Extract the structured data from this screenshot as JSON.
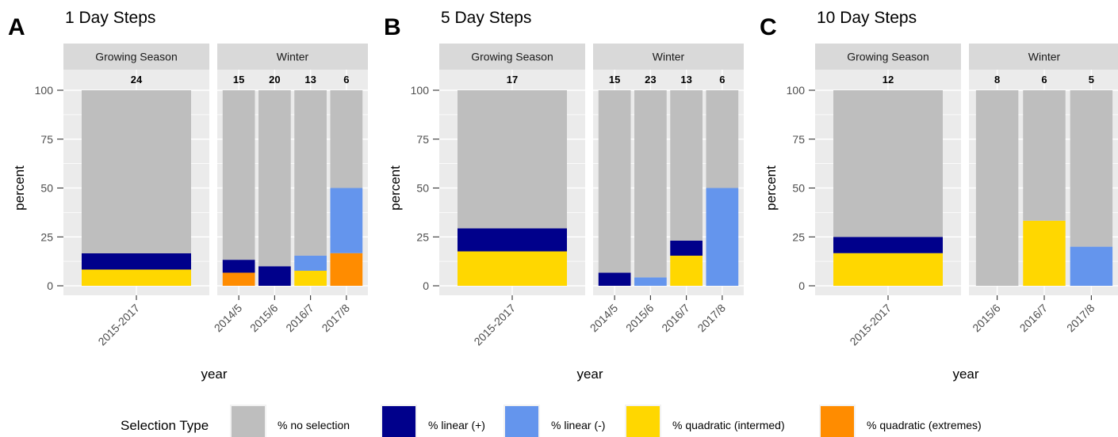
{
  "legend": {
    "title": "Selection Type",
    "placement": "bottom",
    "items": [
      {
        "key": "none",
        "label": "% no selection",
        "color": "#BEBEBE"
      },
      {
        "key": "linpos",
        "label": "% linear (+)",
        "color": "#00008B"
      },
      {
        "key": "linneg",
        "label": "% linear (-)",
        "color": "#6495ED"
      },
      {
        "key": "quadint",
        "label": "% quadratic (intermed)",
        "color": "#FFD700"
      },
      {
        "key": "quadext",
        "label": "% quadratic (extremes)",
        "color": "#FF8C00"
      }
    ]
  },
  "chart_data": [
    {
      "type": "bar",
      "panel_letter": "A",
      "title": "1 Day Steps",
      "xlabel": "year",
      "ylabel": "percent",
      "ylim": [
        0,
        110
      ],
      "yticks": [
        0,
        25,
        50,
        75,
        100
      ],
      "grid": true,
      "stacked": true,
      "facets": [
        {
          "label": "Growing Season",
          "categories": [
            "2015-2017"
          ],
          "counts": [
            "24"
          ],
          "stacks": [
            {
              "quadext": 0,
              "quadint": 8.3,
              "linneg": 0,
              "linpos": 8.3,
              "none": 83.4
            }
          ]
        },
        {
          "label": "Winter",
          "categories": [
            "2014/5",
            "2015/6",
            "2016/7",
            "2017/8"
          ],
          "counts": [
            "15",
            "20",
            "13",
            "6"
          ],
          "stacks": [
            {
              "quadext": 6.7,
              "quadint": 0,
              "linneg": 0,
              "linpos": 6.6,
              "none": 86.7
            },
            {
              "quadext": 0,
              "quadint": 0,
              "linneg": 0,
              "linpos": 10,
              "none": 90
            },
            {
              "quadext": 0,
              "quadint": 7.7,
              "linneg": 7.7,
              "linpos": 0,
              "none": 84.6
            },
            {
              "quadext": 16.7,
              "quadint": 0,
              "linneg": 33.3,
              "linpos": 0,
              "none": 50
            }
          ]
        }
      ]
    },
    {
      "type": "bar",
      "panel_letter": "B",
      "title": "5 Day Steps",
      "xlabel": "year",
      "ylabel": "percent",
      "ylim": [
        0,
        110
      ],
      "yticks": [
        0,
        25,
        50,
        75,
        100
      ],
      "grid": true,
      "stacked": true,
      "facets": [
        {
          "label": "Growing Season",
          "categories": [
            "2015-2017"
          ],
          "counts": [
            "17"
          ],
          "stacks": [
            {
              "quadext": 0,
              "quadint": 17.6,
              "linneg": 0,
              "linpos": 11.8,
              "none": 70.6
            }
          ]
        },
        {
          "label": "Winter",
          "categories": [
            "2014/5",
            "2015/6",
            "2016/7",
            "2017/8"
          ],
          "counts": [
            "15",
            "23",
            "13",
            "6"
          ],
          "stacks": [
            {
              "quadext": 0,
              "quadint": 0,
              "linneg": 0,
              "linpos": 6.7,
              "none": 93.3
            },
            {
              "quadext": 0,
              "quadint": 0,
              "linneg": 4.3,
              "linpos": 0,
              "none": 95.7
            },
            {
              "quadext": 0,
              "quadint": 15.4,
              "linneg": 0,
              "linpos": 7.7,
              "none": 76.9
            },
            {
              "quadext": 0,
              "quadint": 0,
              "linneg": 50,
              "linpos": 0,
              "none": 50
            }
          ]
        }
      ]
    },
    {
      "type": "bar",
      "panel_letter": "C",
      "title": "10 Day Steps",
      "xlabel": "year",
      "ylabel": "percent",
      "ylim": [
        0,
        110
      ],
      "yticks": [
        0,
        25,
        50,
        75,
        100
      ],
      "grid": true,
      "stacked": true,
      "facets": [
        {
          "label": "Growing Season",
          "categories": [
            "2015-2017"
          ],
          "counts": [
            "12"
          ],
          "stacks": [
            {
              "quadext": 0,
              "quadint": 16.7,
              "linneg": 0,
              "linpos": 8.3,
              "none": 75
            }
          ]
        },
        {
          "label": "Winter",
          "categories": [
            "2015/6",
            "2016/7",
            "2017/8"
          ],
          "counts": [
            "8",
            "6",
            "5"
          ],
          "stacks": [
            {
              "quadext": 0,
              "quadint": 0,
              "linneg": 0,
              "linpos": 0,
              "none": 100
            },
            {
              "quadext": 0,
              "quadint": 33.3,
              "linneg": 0,
              "linpos": 0,
              "none": 66.7
            },
            {
              "quadext": 0,
              "quadint": 0,
              "linneg": 20,
              "linpos": 0,
              "none": 80
            }
          ]
        }
      ]
    }
  ]
}
